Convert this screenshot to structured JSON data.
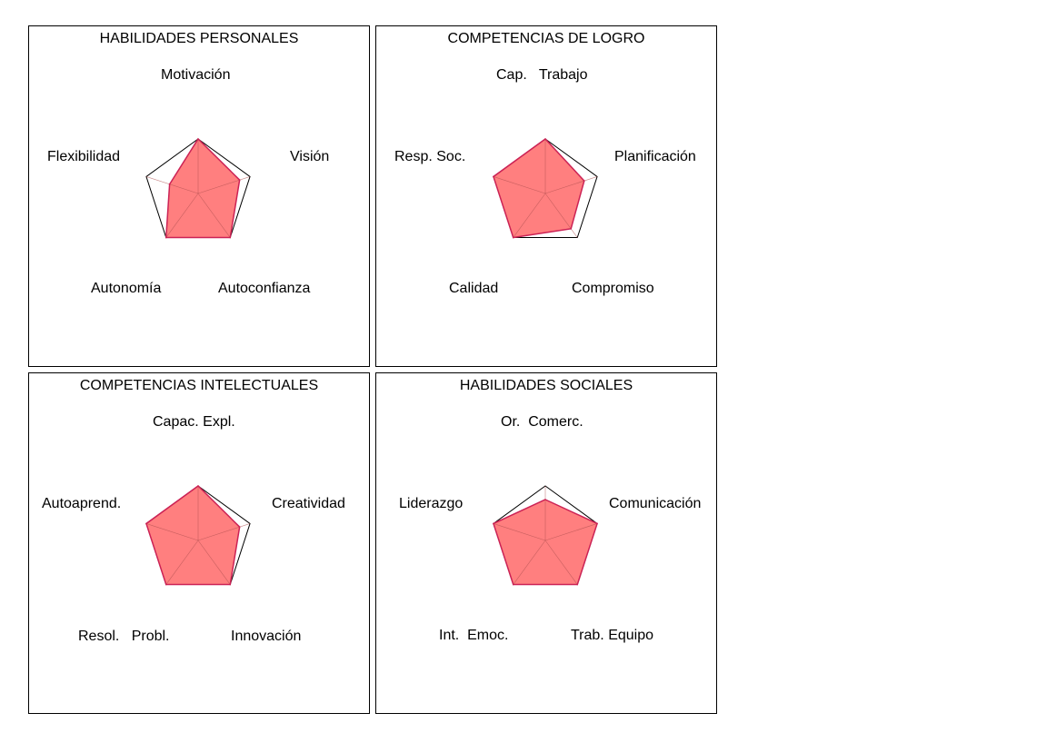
{
  "chart_data": [
    {
      "type": "radar",
      "title": "HABILIDADES PERSONALES",
      "axes": [
        "Motivación",
        "Visión",
        "Autoconfianza",
        "Autonomía",
        "Flexibilidad"
      ],
      "values": [
        1.0,
        0.8,
        1.0,
        1.0,
        0.55
      ],
      "range": [
        0,
        1
      ],
      "grid": false,
      "colors": {
        "fill": "#ff7f7f",
        "line": "#cc2255",
        "frame": "#000000"
      }
    },
    {
      "type": "radar",
      "title": "COMPETENCIAS DE LOGRO",
      "axes": [
        "Cap.   Trabajo",
        "Planificación",
        "Compromiso",
        "Calidad",
        "Resp. Soc."
      ],
      "values": [
        1.0,
        0.75,
        0.8,
        1.0,
        1.0
      ],
      "range": [
        0,
        1
      ],
      "grid": false,
      "colors": {
        "fill": "#ff7f7f",
        "line": "#cc2255",
        "frame": "#000000"
      }
    },
    {
      "type": "radar",
      "title": "COMPETENCIAS INTELECTUALES",
      "axes": [
        "Capac. Expl.",
        "Creatividad",
        "Innovación",
        "Resol.   Probl.",
        "Autoaprend."
      ],
      "values": [
        1.0,
        0.8,
        1.0,
        1.0,
        1.0
      ],
      "range": [
        0,
        1
      ],
      "grid": false,
      "colors": {
        "fill": "#ff7f7f",
        "line": "#cc2255",
        "frame": "#000000"
      }
    },
    {
      "type": "radar",
      "title": "HABILIDADES SOCIALES",
      "axes": [
        "Or.  Comerc.",
        "Comunicación",
        "Trab. Equipo",
        "Int.  Emoc.",
        "Liderazgo"
      ],
      "values": [
        0.75,
        1.0,
        1.0,
        1.0,
        1.0
      ],
      "range": [
        0,
        1
      ],
      "grid": false,
      "colors": {
        "fill": "#ff7f7f",
        "line": "#cc2255",
        "frame": "#000000"
      }
    }
  ]
}
